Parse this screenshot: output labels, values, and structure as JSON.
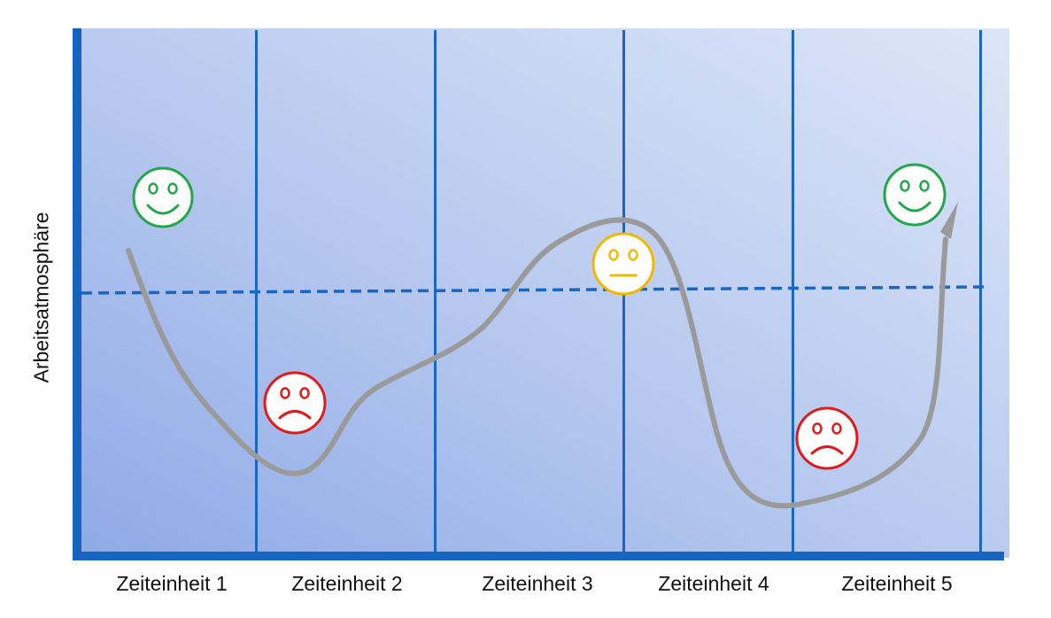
{
  "diagram": {
    "y_axis_label": "Arbeitsatmosphäre",
    "x_labels": [
      "Zeiteinheit 1",
      "Zeiteinheit 2",
      "Zeiteinheit 3",
      "Zeiteinheit 4",
      "Zeiteinheit 5"
    ],
    "colors": {
      "axis": "#1565c0",
      "baseline": "#1a66c2",
      "curve": "#9a9a9a",
      "happy": "#22a84a",
      "sad": "#e01b1b",
      "neutral": "#f2b800"
    },
    "icons": [
      "happy-face-icon",
      "sad-face-icon",
      "neutral-face-icon",
      "sad-face-icon",
      "happy-face-icon"
    ]
  }
}
